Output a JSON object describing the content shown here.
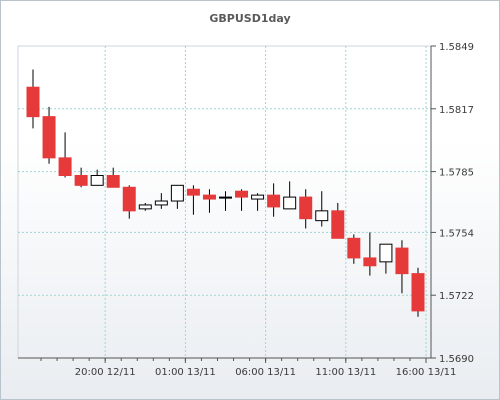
{
  "chart_data": {
    "type": "candlestick",
    "title": "GBPUSD1day",
    "xlabel": "",
    "ylabel": "",
    "ylim": [
      1.569,
      1.5849
    ],
    "grid": true,
    "y_ticks": [
      "1.5849",
      "1.5817",
      "1.5785",
      "1.5754",
      "1.5722",
      "1.5690"
    ],
    "x_ticks": [
      "20:00 12/11",
      "01:00 13/11",
      "06:00 13/11",
      "11:00 13/11",
      "16:00 13/11"
    ],
    "candles": [
      {
        "open": 1.5828,
        "high": 1.5837,
        "low": 1.5807,
        "close": 1.5813
      },
      {
        "open": 1.5813,
        "high": 1.5818,
        "low": 1.5789,
        "close": 1.5792
      },
      {
        "open": 1.5792,
        "high": 1.5805,
        "low": 1.5782,
        "close": 1.5783
      },
      {
        "open": 1.5783,
        "high": 1.5787,
        "low": 1.5777,
        "close": 1.5778
      },
      {
        "open": 1.5778,
        "high": 1.5786,
        "low": 1.5778,
        "close": 1.5783
      },
      {
        "open": 1.5783,
        "high": 1.5787,
        "low": 1.5777,
        "close": 1.5777
      },
      {
        "open": 1.5777,
        "high": 1.5778,
        "low": 1.5761,
        "close": 1.5765
      },
      {
        "open": 1.5766,
        "high": 1.5769,
        "low": 1.5765,
        "close": 1.5768
      },
      {
        "open": 1.5768,
        "high": 1.5774,
        "low": 1.5766,
        "close": 1.577
      },
      {
        "open": 1.577,
        "high": 1.5778,
        "low": 1.5766,
        "close": 1.5778
      },
      {
        "open": 1.5776,
        "high": 1.5778,
        "low": 1.5763,
        "close": 1.5773
      },
      {
        "open": 1.5773,
        "high": 1.5776,
        "low": 1.5764,
        "close": 1.5771
      },
      {
        "open": 1.5772,
        "high": 1.5775,
        "low": 1.5765,
        "close": 1.5772
      },
      {
        "open": 1.5775,
        "high": 1.5776,
        "low": 1.5765,
        "close": 1.5772
      },
      {
        "open": 1.5771,
        "high": 1.5774,
        "low": 1.5765,
        "close": 1.5773
      },
      {
        "open": 1.5773,
        "high": 1.5779,
        "low": 1.5762,
        "close": 1.5767
      },
      {
        "open": 1.5766,
        "high": 1.578,
        "low": 1.5766,
        "close": 1.5772
      },
      {
        "open": 1.5772,
        "high": 1.5776,
        "low": 1.5756,
        "close": 1.5761
      },
      {
        "open": 1.576,
        "high": 1.5775,
        "low": 1.5757,
        "close": 1.5765
      },
      {
        "open": 1.5765,
        "high": 1.5769,
        "low": 1.5751,
        "close": 1.5751
      },
      {
        "open": 1.5751,
        "high": 1.5753,
        "low": 1.5738,
        "close": 1.5741
      },
      {
        "open": 1.5741,
        "high": 1.5754,
        "low": 1.5732,
        "close": 1.5737
      },
      {
        "open": 1.5739,
        "high": 1.5748,
        "low": 1.5733,
        "close": 1.5748
      },
      {
        "open": 1.5746,
        "high": 1.575,
        "low": 1.5723,
        "close": 1.5733
      },
      {
        "open": 1.5733,
        "high": 1.5736,
        "low": 1.5711,
        "close": 1.5714
      }
    ],
    "bullish_color": "#ffffff",
    "bearish_color": "#e63a3a",
    "grid_color": "#9fd3d6"
  }
}
